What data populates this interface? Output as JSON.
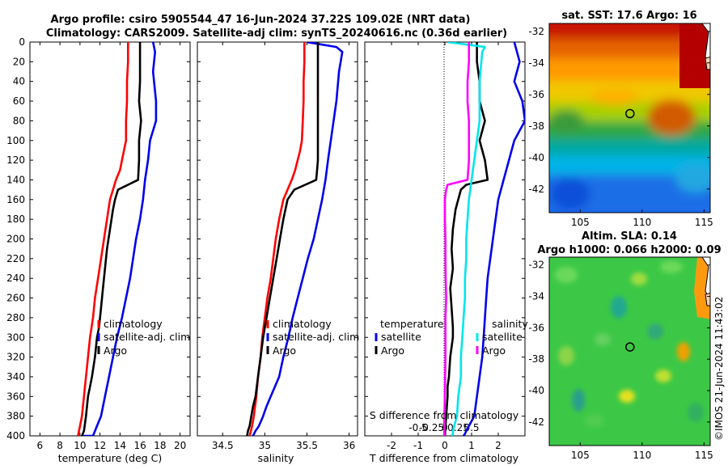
{
  "title": {
    "line1": "Argo profile: csiro 5905544_47 16-Jun-2024 37.22S 109.02E (NRT data)",
    "line2": "Climatology: CARS2009. Satellite-adj clim: synTS_20240616.nc (0.36d earlier)"
  },
  "colors": {
    "red": "#ff0000",
    "blue": "#0000ee",
    "black": "#000000",
    "cyan": "#00e5ee",
    "magenta": "#ff00ff"
  },
  "watermark": "©IMOS 21-Jun-2024 11:43:02",
  "chart_data": [
    {
      "id": "temperature",
      "type": "line",
      "xlabel": "temperature (deg C)",
      "ylabel": "depth",
      "xlim": [
        5,
        21
      ],
      "ylim": [
        400,
        0
      ],
      "xticks": [
        6,
        8,
        10,
        12,
        14,
        16,
        18,
        20
      ],
      "yticks": [
        0,
        20,
        40,
        60,
        80,
        100,
        120,
        140,
        160,
        180,
        200,
        220,
        240,
        260,
        280,
        300,
        320,
        340,
        360,
        380,
        400
      ],
      "legend": [
        "climatology",
        "satellite-adj. clim",
        "Argo"
      ],
      "series": [
        {
          "name": "climatology",
          "color": "red",
          "x": [
            14.8,
            14.8,
            14.7,
            14.7,
            14.6,
            14.6,
            14.4,
            14.2,
            14.0,
            13.6,
            13.3,
            13.0,
            12.7,
            12.4,
            12.1,
            11.8,
            11.5,
            11.3,
            11.0,
            10.8,
            10.6,
            10.4,
            10.2,
            10.0,
            9.8
          ],
          "y": [
            0,
            20,
            40,
            60,
            80,
            100,
            110,
            120,
            130,
            140,
            150,
            160,
            180,
            200,
            220,
            240,
            260,
            280,
            300,
            320,
            340,
            360,
            380,
            390,
            400
          ]
        },
        {
          "name": "satellite-adj. clim",
          "color": "blue",
          "x": [
            17.3,
            17.5,
            17.3,
            17.6,
            17.6,
            17.0,
            16.8,
            16.5,
            16.3,
            16.0,
            15.6,
            15.3,
            15.0,
            14.6,
            14.2,
            13.7,
            13.3,
            12.9,
            12.5,
            12.1,
            11.7,
            11.3,
            11.0,
            10.7,
            10.4,
            10.3
          ],
          "y": [
            0,
            10,
            30,
            60,
            80,
            100,
            120,
            140,
            160,
            180,
            200,
            220,
            240,
            260,
            280,
            300,
            320,
            340,
            360,
            380,
            390,
            400,
            400,
            400,
            400,
            400
          ]
        },
        {
          "name": "Argo",
          "color": "black",
          "x": [
            16.0,
            16.0,
            16.0,
            15.9,
            16.1,
            15.9,
            15.9,
            15.8,
            14.8,
            13.8,
            13.5,
            13.3,
            13.0,
            12.7,
            12.5,
            12.3,
            12.1,
            11.9,
            11.7,
            11.5,
            11.2,
            11.0,
            10.8,
            10.6,
            10.4,
            10.2
          ],
          "y": [
            0,
            20,
            40,
            60,
            80,
            100,
            120,
            140,
            145,
            150,
            160,
            170,
            190,
            210,
            230,
            250,
            270,
            290,
            300,
            320,
            340,
            350,
            360,
            380,
            395,
            400
          ]
        }
      ]
    },
    {
      "id": "salinity",
      "type": "line",
      "xlabel": "salinity",
      "ylabel": "depth",
      "xlim": [
        34.2,
        36.1
      ],
      "ylim": [
        400,
        0
      ],
      "xticks": [
        34.5,
        35,
        35.5,
        36
      ],
      "xtick_labels": [
        "34.5",
        "35",
        "35.5",
        "36"
      ],
      "legend": [
        "climatology",
        "satellite-adj. clim",
        "Argo"
      ],
      "series": [
        {
          "name": "climatology",
          "color": "red",
          "x": [
            35.47,
            35.47,
            35.46,
            35.46,
            35.45,
            35.44,
            35.42,
            35.39,
            35.36,
            35.32,
            35.27,
            35.22,
            35.17,
            35.13,
            35.1,
            35.07,
            35.03,
            35.0,
            34.97,
            34.95,
            34.92,
            34.9,
            34.87,
            34.85,
            34.82
          ],
          "y": [
            0,
            20,
            40,
            60,
            80,
            100,
            110,
            120,
            130,
            140,
            150,
            160,
            180,
            200,
            220,
            240,
            260,
            280,
            300,
            320,
            340,
            360,
            380,
            390,
            400
          ]
        },
        {
          "name": "satellite-adj. clim",
          "color": "blue",
          "x": [
            35.5,
            35.85,
            35.92,
            35.88,
            35.85,
            35.8,
            35.75,
            35.72,
            35.68,
            35.63,
            35.58,
            35.51,
            35.45,
            35.39,
            35.33,
            35.28,
            35.22,
            35.17,
            35.12,
            35.07,
            35.02,
            34.98,
            34.93,
            34.89,
            34.86
          ],
          "y": [
            0,
            5,
            10,
            30,
            60,
            90,
            120,
            140,
            160,
            180,
            200,
            220,
            240,
            260,
            280,
            300,
            320,
            340,
            350,
            360,
            370,
            380,
            390,
            395,
            400
          ]
        },
        {
          "name": "Argo",
          "color": "black",
          "x": [
            35.63,
            35.63,
            35.63,
            35.63,
            35.63,
            35.62,
            35.61,
            35.48,
            35.35,
            35.27,
            35.22,
            35.18,
            35.14,
            35.1,
            35.06,
            35.02,
            34.98,
            34.95,
            34.92,
            34.89,
            34.86,
            34.84,
            34.82,
            34.8,
            34.79
          ],
          "y": [
            0,
            40,
            80,
            100,
            120,
            130,
            140,
            145,
            150,
            160,
            180,
            200,
            220,
            240,
            260,
            280,
            300,
            320,
            340,
            360,
            370,
            380,
            390,
            395,
            400
          ]
        }
      ]
    },
    {
      "id": "difference",
      "type": "line",
      "xlabel": "T difference from climatology",
      "xlabel2": "S difference from climatology",
      "ylabel": "depth",
      "xlim": [
        -3,
        3
      ],
      "ylim": [
        400,
        0
      ],
      "xticks": [
        -2,
        -1,
        0,
        1,
        2
      ],
      "xtick_labels": [
        "-2",
        "-1",
        "0",
        "1",
        "2"
      ],
      "xticks2": [
        -1,
        -0.5,
        0,
        0.5,
        1
      ],
      "xtick_labels2": [
        "-0.5",
        "-0.25",
        "0",
        "0.25",
        "0.5"
      ],
      "legend_temperature": {
        "title": "temperature",
        "items": [
          "satellite",
          "Argo"
        ]
      },
      "legend_salinity": {
        "title": "salinity",
        "items": [
          "satellite",
          "Argo"
        ]
      },
      "series": [
        {
          "name": "temperature satellite",
          "color": "blue",
          "x": [
            2.6,
            2.8,
            2.6,
            2.9,
            3.0,
            2.6,
            2.4,
            2.2,
            2.0,
            1.9,
            1.8,
            1.7,
            1.6,
            1.55,
            1.5,
            1.45,
            1.4,
            1.3,
            1.2,
            1.1,
            1.0,
            0.9,
            0.8,
            0.75,
            0.7
          ],
          "y": [
            0,
            20,
            40,
            60,
            80,
            100,
            120,
            140,
            160,
            180,
            200,
            220,
            240,
            260,
            280,
            300,
            320,
            340,
            360,
            380,
            385,
            390,
            395,
            398,
            400
          ]
        },
        {
          "name": "temperature Argo",
          "color": "black",
          "x": [
            1.2,
            1.2,
            1.3,
            1.3,
            1.5,
            1.3,
            1.5,
            1.6,
            0.8,
            0.6,
            0.5,
            0.4,
            0.3,
            0.25,
            0.3,
            0.2,
            0.25,
            0.3,
            0.3,
            0.2,
            0.15,
            0.1,
            0.1,
            0.05,
            0.0
          ],
          "y": [
            0,
            20,
            40,
            60,
            80,
            100,
            120,
            140,
            145,
            150,
            160,
            170,
            190,
            210,
            230,
            250,
            270,
            290,
            300,
            320,
            340,
            350,
            360,
            380,
            400
          ]
        },
        {
          "name": "salinity satellite",
          "color": "cyan",
          "x": [
            0.1,
            1.5,
            1.4,
            1.3,
            1.3,
            1.2,
            1.1,
            1.0,
            0.9,
            0.85,
            0.8,
            0.8,
            0.75,
            0.75,
            0.7,
            0.65,
            0.6,
            0.6,
            0.5,
            0.45,
            0.4,
            0.35,
            0.3,
            0.3,
            0.25
          ],
          "y": [
            0,
            5,
            10,
            40,
            80,
            100,
            120,
            140,
            160,
            180,
            200,
            220,
            240,
            260,
            280,
            300,
            320,
            340,
            360,
            380,
            385,
            390,
            395,
            398,
            400
          ]
        },
        {
          "name": "salinity Argo",
          "color": "magenta",
          "x": [
            0.9,
            0.9,
            0.85,
            0.85,
            0.9,
            0.9,
            0.9,
            0.85,
            0.1,
            0.05,
            0.0,
            0.0,
            0.02,
            0.02,
            0.03,
            0.05,
            0.02,
            0.02,
            0.02,
            0.01,
            0.0,
            -0.02,
            -0.02,
            -0.02,
            -0.02
          ],
          "y": [
            0,
            20,
            40,
            60,
            80,
            100,
            120,
            140,
            145,
            150,
            160,
            180,
            200,
            220,
            240,
            260,
            280,
            300,
            320,
            340,
            360,
            380,
            390,
            395,
            400
          ]
        }
      ]
    },
    {
      "id": "sst-map",
      "type": "heatmap",
      "title": "sat. SST: 17.6 Argo: 16",
      "xlim": [
        102.5,
        115.5
      ],
      "ylim": [
        -43.5,
        -31.5
      ],
      "xticks": [
        105,
        110,
        115
      ],
      "yticks": [
        -32,
        -34,
        -36,
        -38,
        -40,
        -42
      ],
      "marker": {
        "lon": 109.02,
        "lat": -37.22
      }
    },
    {
      "id": "sla-map",
      "type": "heatmap",
      "title": "Altim. SLA: 0.14",
      "subtitle": "Argo h1000: 0.066 h2000: 0.09",
      "xlim": [
        102.5,
        115.5
      ],
      "ylim": [
        -43.5,
        -31.5
      ],
      "xticks": [
        105,
        110,
        115
      ],
      "yticks": [
        -32,
        -34,
        -36,
        -38,
        -40,
        -42
      ],
      "marker": {
        "lon": 109.02,
        "lat": -37.22
      }
    }
  ]
}
